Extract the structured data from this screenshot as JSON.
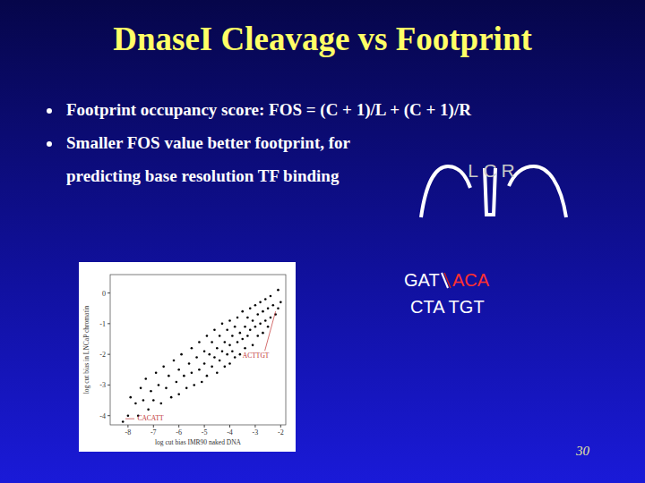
{
  "slide": {
    "title": "DnaseI Cleavage vs Footprint",
    "bullets": [
      [
        "Footprint occupancy score: FOS = (C + 1)/L + (C + 1)/R"
      ],
      [
        "Smaller FOS value better footprint, for",
        "predicting base resolution TF binding"
      ]
    ],
    "diagram_labels": [
      "L",
      "C",
      "R"
    ],
    "sequence": {
      "top_left": "GAT",
      "top_right": "ACA",
      "bottom": "CTA TGT"
    },
    "page": "30"
  },
  "chart_data": {
    "type": "scatter",
    "xlabel": "log cut bias IMR90 naked DNA",
    "ylabel": "log cut bias in LNCaP chromatin",
    "xlim": [
      -8.7,
      -1.8
    ],
    "ylim": [
      -4.3,
      0.6
    ],
    "xticks": [
      -8,
      -7,
      -6,
      -5,
      -4,
      -3,
      -2
    ],
    "yticks": [
      0,
      -1,
      -2,
      -3,
      -4
    ],
    "color": "#000000",
    "marker": "dot",
    "x": [
      -8.2,
      -8.0,
      -7.9,
      -7.7,
      -7.6,
      -7.5,
      -7.4,
      -7.3,
      -7.2,
      -7.1,
      -7.0,
      -6.9,
      -6.8,
      -6.7,
      -6.6,
      -6.5,
      -6.4,
      -6.3,
      -6.2,
      -6.1,
      -6.0,
      -6.0,
      -5.9,
      -5.8,
      -5.7,
      -5.6,
      -5.5,
      -5.5,
      -5.4,
      -5.3,
      -5.2,
      -5.2,
      -5.1,
      -5.0,
      -5.0,
      -4.9,
      -4.9,
      -4.8,
      -4.7,
      -4.7,
      -4.6,
      -4.6,
      -4.5,
      -4.5,
      -4.4,
      -4.4,
      -4.3,
      -4.3,
      -4.2,
      -4.2,
      -4.1,
      -4.1,
      -4.0,
      -4.0,
      -4.0,
      -3.9,
      -3.9,
      -3.8,
      -3.8,
      -3.7,
      -3.7,
      -3.6,
      -3.6,
      -3.5,
      -3.5,
      -3.4,
      -3.4,
      -3.3,
      -3.3,
      -3.2,
      -3.2,
      -3.1,
      -3.1,
      -3.0,
      -3.0,
      -2.9,
      -2.9,
      -2.8,
      -2.8,
      -2.7,
      -2.7,
      -2.6,
      -2.6,
      -2.5,
      -2.5,
      -2.4,
      -2.4,
      -2.3,
      -2.2,
      -2.1,
      -2.1,
      -2.0
    ],
    "values": [
      -4.2,
      -4.0,
      -3.4,
      -3.6,
      -4.0,
      -3.1,
      -3.5,
      -2.8,
      -3.8,
      -3.2,
      -3.5,
      -2.6,
      -3.0,
      -3.6,
      -2.4,
      -3.1,
      -2.7,
      -3.4,
      -2.2,
      -2.9,
      -2.5,
      -3.3,
      -2.0,
      -2.7,
      -3.1,
      -2.3,
      -1.8,
      -2.6,
      -3.0,
      -2.1,
      -1.6,
      -2.5,
      -2.9,
      -1.9,
      -2.3,
      -1.4,
      -2.7,
      -2.0,
      -1.6,
      -2.4,
      -1.2,
      -2.1,
      -1.8,
      -2.6,
      -1.4,
      -2.2,
      -1.0,
      -1.9,
      -1.6,
      -2.4,
      -1.2,
      -2.0,
      -0.9,
      -1.7,
      -2.3,
      -1.4,
      -1.9,
      -1.1,
      -2.1,
      -0.8,
      -1.6,
      -1.3,
      -2.0,
      -0.6,
      -1.5,
      -1.1,
      -1.8,
      -0.8,
      -1.4,
      -0.5,
      -1.2,
      -0.9,
      -1.7,
      -0.4,
      -1.1,
      -0.7,
      -1.4,
      -0.3,
      -1.0,
      -0.6,
      -1.3,
      -0.2,
      -0.9,
      -0.5,
      -1.1,
      -0.1,
      -0.8,
      -0.4,
      -0.7,
      0.1,
      -0.5,
      -0.3
    ],
    "annotations": [
      {
        "text": "ACTTGT",
        "x": -2.2,
        "y": -0.6
      },
      {
        "text": "CACATT",
        "x": -8.1,
        "y": -4.1
      }
    ]
  }
}
